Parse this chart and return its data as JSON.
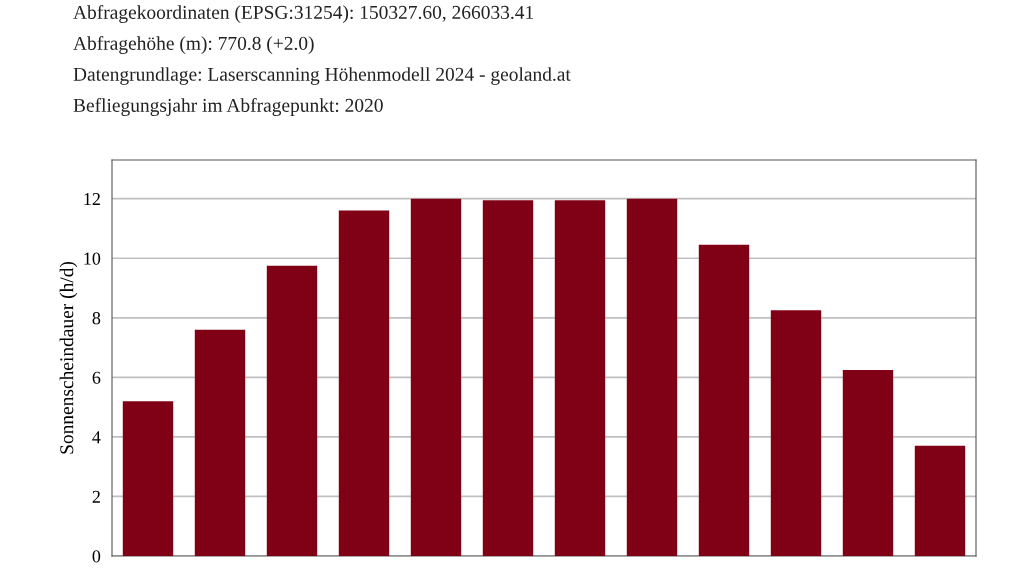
{
  "chart_data": {
    "type": "bar",
    "annotations": [
      "Abfragekoordinaten (EPSG:31254): 150327.60, 266033.41",
      "Abfragehöhe (m): 770.8 (+2.0)",
      "Datengrundlage: Laserscanning Höhenmodell 2024 - geoland.at",
      "Befliegungsjahr im Abfragepunkt: 2020"
    ],
    "ylabel": "Sonnenscheindauer (h/d)",
    "categories": [
      null,
      null,
      null,
      null,
      null,
      null,
      null,
      null,
      null,
      null,
      null,
      null
    ],
    "values": [
      5.2,
      7.6,
      9.75,
      11.6,
      12.0,
      11.95,
      11.95,
      12.0,
      10.45,
      8.25,
      6.25,
      3.7
    ],
    "color": "#800016",
    "ylim": [
      0,
      13.3
    ],
    "yticks": [
      0,
      2,
      4,
      6,
      8,
      10,
      12
    ],
    "grid": "y",
    "tick_labels": "y"
  }
}
